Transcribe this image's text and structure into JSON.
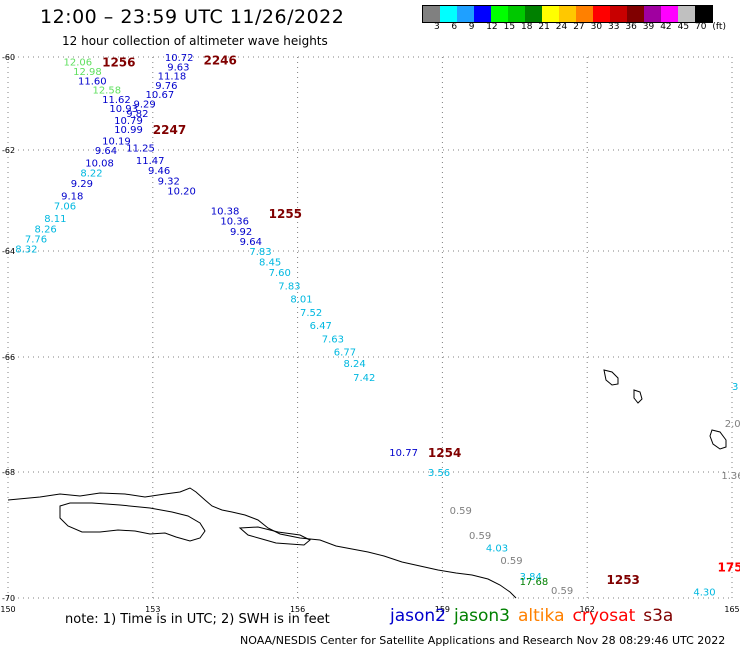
{
  "header": {
    "title": "12:00 – 23:59 UTC 11/26/2022",
    "subtitle": "12 hour collection of altimeter wave heights"
  },
  "colorbar": {
    "colors": [
      "#808080",
      "#00ffff",
      "#1fa0ff",
      "#0000ff",
      "#00ff00",
      "#00c800",
      "#008000",
      "#ffff00",
      "#ffc800",
      "#ff8000",
      "#ff0000",
      "#c80000",
      "#800000",
      "#a000a0",
      "#ff00ff",
      "#c0c0c0",
      "#000000"
    ],
    "labels": [
      "3",
      "6",
      "9",
      "12",
      "15",
      "18",
      "21",
      "24",
      "27",
      "30",
      "33",
      "36",
      "39",
      "42",
      "45",
      "70",
      "(ft)"
    ]
  },
  "map": {
    "lon_range": [
      150,
      165
    ],
    "lat_range": [
      -70,
      -60
    ],
    "lon_ticks": [
      "150",
      "153",
      "156",
      "159",
      "162",
      "165"
    ],
    "lat_ticks": [
      "-60",
      "-62",
      "-64",
      "-66",
      "-68",
      "-70"
    ],
    "colors": {
      "jason2": "#0000cc",
      "jason3": "#008000",
      "altika": "#ff8000",
      "cryosat": "#ff0000",
      "s3a": "#800000",
      "light_green": "#60e060",
      "cyan": "#00b8e0",
      "gray": "#808080",
      "coast": "#000000",
      "grid": "#808080"
    },
    "time_labels": [
      {
        "text": "1256",
        "lon": 151.95,
        "lat": -60.1,
        "color": "#800000"
      },
      {
        "text": "2246",
        "lon": 154.05,
        "lat": -60.05,
        "color": "#800000"
      },
      {
        "text": "2247",
        "lon": 153.0,
        "lat": -61.55,
        "color": "#800000"
      },
      {
        "text": "1255",
        "lon": 155.4,
        "lat": -63.25,
        "color": "#800000"
      },
      {
        "text": "1254",
        "lon": 158.7,
        "lat": -67.65,
        "color": "#800000"
      },
      {
        "text": "1253",
        "lon": 162.4,
        "lat": -69.7,
        "color": "#800000"
      },
      {
        "text": "175",
        "lon": 164.7,
        "lat": -69.5,
        "color": "#ff0000"
      }
    ],
    "swh_points": [
      {
        "text": "12.06",
        "lon": 151.15,
        "lat": -60.1,
        "color": "#60e060"
      },
      {
        "text": "12.98",
        "lon": 151.35,
        "lat": -60.3,
        "color": "#60e060"
      },
      {
        "text": "11.60",
        "lon": 151.45,
        "lat": -60.5,
        "color": "#0000cc"
      },
      {
        "text": "12.58",
        "lon": 151.75,
        "lat": -60.7,
        "color": "#60e060"
      },
      {
        "text": "11.62",
        "lon": 151.95,
        "lat": -60.9,
        "color": "#0000cc"
      },
      {
        "text": "10.93",
        "lon": 152.1,
        "lat": -61.1,
        "color": "#0000cc"
      },
      {
        "text": "10.72",
        "lon": 153.25,
        "lat": -60.0,
        "color": "#0000cc"
      },
      {
        "text": "9.63",
        "lon": 153.3,
        "lat": -60.2,
        "color": "#0000cc"
      },
      {
        "text": "11.18",
        "lon": 153.1,
        "lat": -60.4,
        "color": "#0000cc"
      },
      {
        "text": "9.76",
        "lon": 153.05,
        "lat": -60.6,
        "color": "#0000cc"
      },
      {
        "text": "10.67",
        "lon": 152.85,
        "lat": -60.8,
        "color": "#0000cc"
      },
      {
        "text": "9.29",
        "lon": 152.6,
        "lat": -61.0,
        "color": "#0000cc"
      },
      {
        "text": "9.82",
        "lon": 152.45,
        "lat": -61.2,
        "color": "#0000cc"
      },
      {
        "text": "10.79",
        "lon": 152.2,
        "lat": -61.35,
        "color": "#0000cc"
      },
      {
        "text": "10.99",
        "lon": 152.2,
        "lat": -61.55,
        "color": "#0000cc"
      },
      {
        "text": "10.19",
        "lon": 151.95,
        "lat": -61.8,
        "color": "#0000cc"
      },
      {
        "text": "11.25",
        "lon": 152.45,
        "lat": -61.95,
        "color": "#0000cc"
      },
      {
        "text": "9.64",
        "lon": 151.8,
        "lat": -62.0,
        "color": "#0000cc"
      },
      {
        "text": "11.47",
        "lon": 152.65,
        "lat": -62.2,
        "color": "#0000cc"
      },
      {
        "text": "10.08",
        "lon": 151.6,
        "lat": -62.25,
        "color": "#0000cc"
      },
      {
        "text": "9.46",
        "lon": 152.9,
        "lat": -62.4,
        "color": "#0000cc"
      },
      {
        "text": "8.22",
        "lon": 151.5,
        "lat": -62.45,
        "color": "#00b8e0"
      },
      {
        "text": "9.32",
        "lon": 153.1,
        "lat": -62.6,
        "color": "#0000cc"
      },
      {
        "text": "9.29",
        "lon": 151.3,
        "lat": -62.65,
        "color": "#0000cc"
      },
      {
        "text": "10.20",
        "lon": 153.3,
        "lat": -62.8,
        "color": "#0000cc"
      },
      {
        "text": "9.18",
        "lon": 151.1,
        "lat": -62.9,
        "color": "#0000cc"
      },
      {
        "text": "7.06",
        "lon": 150.95,
        "lat": -63.1,
        "color": "#00b8e0"
      },
      {
        "text": "10.38",
        "lon": 154.2,
        "lat": -63.2,
        "color": "#0000cc"
      },
      {
        "text": "8.11",
        "lon": 150.75,
        "lat": -63.35,
        "color": "#00b8e0"
      },
      {
        "text": "10.36",
        "lon": 154.4,
        "lat": -63.4,
        "color": "#0000cc"
      },
      {
        "text": "8.26",
        "lon": 150.55,
        "lat": -63.55,
        "color": "#00b8e0"
      },
      {
        "text": "9.92",
        "lon": 154.6,
        "lat": -63.6,
        "color": "#0000cc"
      },
      {
        "text": "7.76",
        "lon": 150.35,
        "lat": -63.75,
        "color": "#00b8e0"
      },
      {
        "text": "9.64",
        "lon": 154.8,
        "lat": -63.8,
        "color": "#0000cc"
      },
      {
        "text": "8.32",
        "lon": 150.15,
        "lat": -63.95,
        "color": "#00b8e0"
      },
      {
        "text": "7.83",
        "lon": 155.0,
        "lat": -64.0,
        "color": "#00b8e0"
      },
      {
        "text": "8.45",
        "lon": 155.2,
        "lat": -64.2,
        "color": "#00b8e0"
      },
      {
        "text": "7.60",
        "lon": 155.4,
        "lat": -64.4,
        "color": "#00b8e0"
      },
      {
        "text": "7.83",
        "lon": 155.6,
        "lat": -64.65,
        "color": "#00b8e0"
      },
      {
        "text": "8.01",
        "lon": 155.85,
        "lat": -64.9,
        "color": "#00b8e0"
      },
      {
        "text": "7.52",
        "lon": 156.05,
        "lat": -65.15,
        "color": "#00b8e0"
      },
      {
        "text": "6.47",
        "lon": 156.25,
        "lat": -65.4,
        "color": "#00b8e0"
      },
      {
        "text": "7.63",
        "lon": 156.5,
        "lat": -65.65,
        "color": "#00b8e0"
      },
      {
        "text": "6.77",
        "lon": 156.75,
        "lat": -65.9,
        "color": "#00b8e0"
      },
      {
        "text": "8.24",
        "lon": 156.95,
        "lat": -66.1,
        "color": "#00b8e0"
      },
      {
        "text": "7.42",
        "lon": 157.15,
        "lat": -66.35,
        "color": "#00b8e0"
      },
      {
        "text": "10.77",
        "lon": 157.9,
        "lat": -67.65,
        "color": "#0000cc"
      },
      {
        "text": "3.56",
        "lon": 158.7,
        "lat": -68.0,
        "color": "#00b8e0"
      },
      {
        "text": "0.59",
        "lon": 159.15,
        "lat": -68.6,
        "color": "#808080"
      },
      {
        "text": "0.59",
        "lon": 159.55,
        "lat": -69.0,
        "color": "#808080"
      },
      {
        "text": "4.03",
        "lon": 159.9,
        "lat": -69.2,
        "color": "#00b8e0"
      },
      {
        "text": "0.59",
        "lon": 160.2,
        "lat": -69.4,
        "color": "#808080"
      },
      {
        "text": "3.84",
        "lon": 160.6,
        "lat": -69.65,
        "color": "#00b8e0"
      },
      {
        "text": "17.68",
        "lon": 160.6,
        "lat": -69.73,
        "color": "#008000"
      },
      {
        "text": "0.59",
        "lon": 161.25,
        "lat": -69.87,
        "color": "#808080"
      },
      {
        "text": "4.30",
        "lon": 164.2,
        "lat": -69.9,
        "color": "#00b8e0"
      },
      {
        "text": "1.36",
        "lon": 164.78,
        "lat": -68.05,
        "color": "#808080"
      },
      {
        "text": "2.0",
        "lon": 164.85,
        "lat": -67.15,
        "color": "#808080"
      },
      {
        "text": "3",
        "lon": 165.0,
        "lat": -66.5,
        "color": "#00b8e0"
      }
    ]
  },
  "footer": {
    "note": "note: 1) Time is in UTC; 2) SWH is in feet",
    "satellites": [
      {
        "name": "jason2",
        "color": "#0000cc"
      },
      {
        "name": "jason3",
        "color": "#008000"
      },
      {
        "name": "altika",
        "color": "#ff8000"
      },
      {
        "name": "cryosat",
        "color": "#ff0000"
      },
      {
        "name": "s3a",
        "color": "#800000"
      }
    ],
    "credits": "NOAA/NESDIS Center for Satellite Applications and Research   Nov 28 08:29:46 UTC 2022"
  }
}
